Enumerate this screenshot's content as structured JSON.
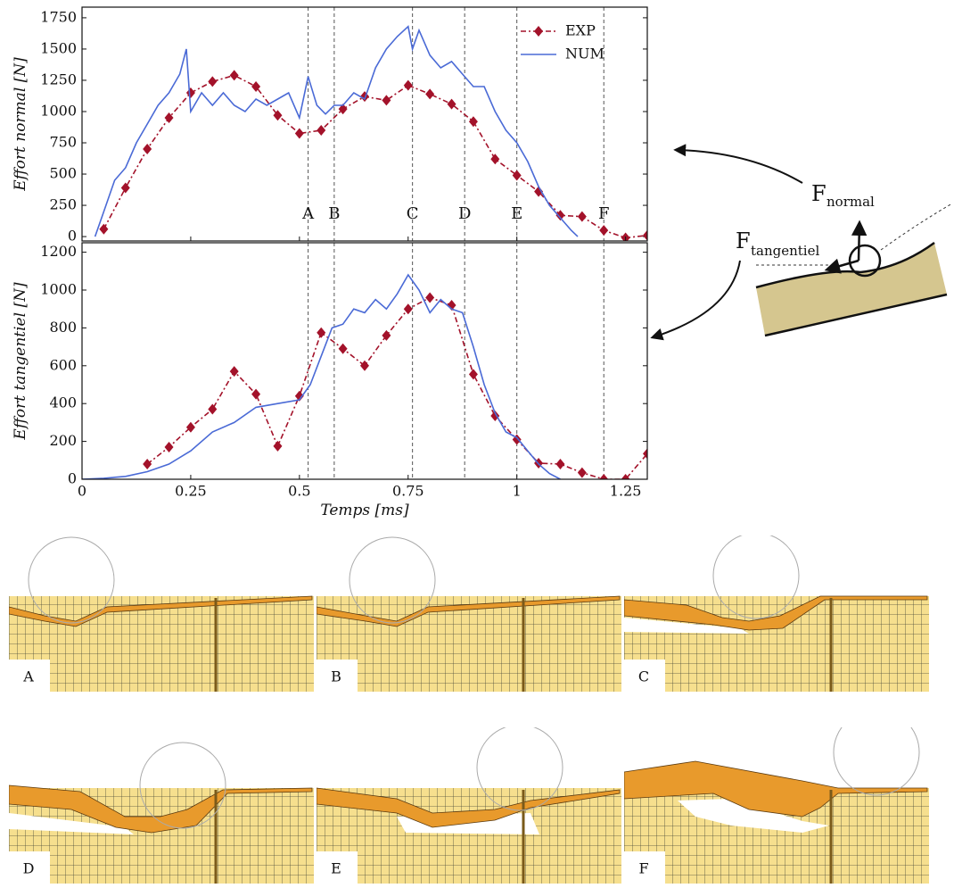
{
  "chart_data": [
    {
      "type": "line",
      "ylabel": "Effort normal [N]",
      "xlim": [
        0,
        1.3
      ],
      "ylim": [
        -35,
        1835
      ],
      "yticks": [
        0,
        250,
        500,
        750,
        1000,
        1250,
        1500,
        1750
      ],
      "legend": "upper right",
      "vlines": [
        {
          "x": 0.52,
          "label": "A"
        },
        {
          "x": 0.58,
          "label": "B"
        },
        {
          "x": 0.76,
          "label": "C"
        },
        {
          "x": 0.88,
          "label": "D"
        },
        {
          "x": 1.0,
          "label": "E"
        },
        {
          "x": 1.2,
          "label": "F"
        }
      ],
      "series": [
        {
          "name": "EXP",
          "color": "#a3122a",
          "marker": "diamond",
          "style": "dashdot",
          "x": [
            0.05,
            0.1,
            0.15,
            0.2,
            0.25,
            0.3,
            0.35,
            0.4,
            0.45,
            0.5,
            0.55,
            0.6,
            0.65,
            0.7,
            0.75,
            0.8,
            0.85,
            0.9,
            0.95,
            1.0,
            1.05,
            1.1,
            1.15,
            1.2,
            1.25,
            1.3
          ],
          "values": [
            60,
            390,
            700,
            950,
            1150,
            1240,
            1290,
            1200,
            970,
            825,
            850,
            1020,
            1120,
            1090,
            1210,
            1140,
            1060,
            920,
            620,
            490,
            360,
            170,
            160,
            50,
            -10,
            10
          ]
        },
        {
          "name": "NUM",
          "color": "#4a6ad6",
          "marker": "none",
          "style": "solid",
          "x": [
            0.03,
            0.05,
            0.075,
            0.1,
            0.125,
            0.15,
            0.175,
            0.2,
            0.225,
            0.24,
            0.25,
            0.275,
            0.3,
            0.325,
            0.35,
            0.375,
            0.4,
            0.425,
            0.45,
            0.475,
            0.5,
            0.52,
            0.54,
            0.56,
            0.58,
            0.6,
            0.625,
            0.65,
            0.675,
            0.7,
            0.725,
            0.75,
            0.76,
            0.775,
            0.8,
            0.825,
            0.85,
            0.875,
            0.9,
            0.925,
            0.95,
            0.975,
            1.0,
            1.025,
            1.05,
            1.075,
            1.1,
            1.125,
            1.14
          ],
          "values": [
            0,
            200,
            450,
            550,
            750,
            900,
            1050,
            1150,
            1300,
            1500,
            1000,
            1150,
            1050,
            1150,
            1050,
            1000,
            1100,
            1050,
            1100,
            1150,
            950,
            1280,
            1050,
            980,
            1050,
            1050,
            1150,
            1100,
            1350,
            1500,
            1600,
            1680,
            1500,
            1650,
            1450,
            1350,
            1400,
            1300,
            1200,
            1200,
            1000,
            850,
            750,
            600,
            400,
            250,
            150,
            50,
            0
          ]
        }
      ]
    },
    {
      "type": "line",
      "ylabel": "Effort tangentiel [N]",
      "xlabel": "Temps [ms]",
      "xlim": [
        0,
        1.3
      ],
      "ylim": [
        0,
        1250
      ],
      "xticks": [
        0,
        0.25,
        0.5,
        0.75,
        1,
        1.25
      ],
      "yticks": [
        0,
        200,
        400,
        600,
        800,
        1000,
        1200
      ],
      "vlines": [
        {
          "x": 0.52
        },
        {
          "x": 0.58
        },
        {
          "x": 0.76
        },
        {
          "x": 0.88
        },
        {
          "x": 1.0
        },
        {
          "x": 1.2
        }
      ],
      "series": [
        {
          "name": "EXP",
          "color": "#a3122a",
          "marker": "diamond",
          "style": "dashdot",
          "x": [
            0.15,
            0.2,
            0.25,
            0.3,
            0.35,
            0.4,
            0.45,
            0.5,
            0.55,
            0.6,
            0.65,
            0.7,
            0.75,
            0.8,
            0.85,
            0.9,
            0.95,
            1.0,
            1.05,
            1.1,
            1.15,
            1.2,
            1.25,
            1.3
          ],
          "values": [
            80,
            170,
            275,
            370,
            570,
            450,
            175,
            440,
            775,
            690,
            600,
            760,
            900,
            960,
            920,
            555,
            335,
            210,
            85,
            80,
            35,
            0,
            0,
            135
          ]
        },
        {
          "name": "NUM",
          "color": "#4a6ad6",
          "marker": "none",
          "style": "solid",
          "x": [
            0,
            0.05,
            0.1,
            0.15,
            0.2,
            0.25,
            0.3,
            0.35,
            0.4,
            0.45,
            0.5,
            0.525,
            0.55,
            0.575,
            0.6,
            0.625,
            0.65,
            0.675,
            0.7,
            0.725,
            0.75,
            0.775,
            0.8,
            0.825,
            0.85,
            0.875,
            0.9,
            0.925,
            0.95,
            0.975,
            1.0,
            1.025,
            1.05,
            1.075,
            1.1
          ],
          "values": [
            0,
            5,
            15,
            40,
            80,
            150,
            250,
            300,
            380,
            400,
            420,
            500,
            650,
            800,
            820,
            900,
            880,
            950,
            900,
            980,
            1080,
            1000,
            880,
            950,
            900,
            880,
            700,
            500,
            350,
            250,
            220,
            150,
            80,
            30,
            0
          ]
        }
      ]
    }
  ],
  "diagram": {
    "normal": {
      "symbol": "F",
      "subscript": "normal"
    },
    "tangential": {
      "symbol": "F",
      "subscript": "tangentiel"
    }
  },
  "panels": [
    {
      "label": "A"
    },
    {
      "label": "B"
    },
    {
      "label": "C"
    },
    {
      "label": "D"
    },
    {
      "label": "E"
    },
    {
      "label": "F"
    }
  ]
}
